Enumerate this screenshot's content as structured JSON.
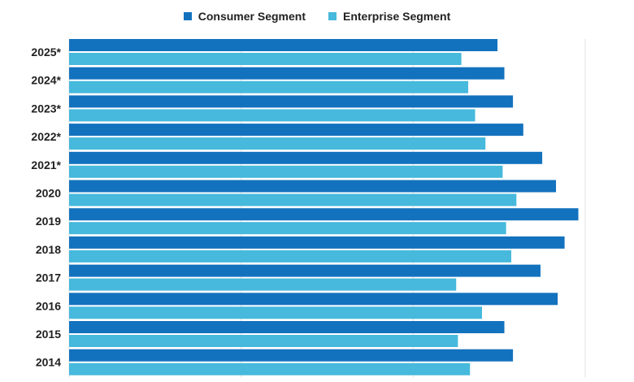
{
  "chart_data": {
    "type": "bar",
    "orientation": "horizontal",
    "categories": [
      "2025*",
      "2024*",
      "2023*",
      "2022*",
      "2021*",
      "2020",
      "2019",
      "2018",
      "2017",
      "2016",
      "2015",
      "2014"
    ],
    "series": [
      {
        "name": "Consumer Segment",
        "color": "#1372be",
        "values": [
          249,
          253,
          258,
          264,
          275,
          283,
          296,
          288,
          274,
          284,
          253,
          258
        ]
      },
      {
        "name": "Enterprise Segment",
        "color": "#46b9dc",
        "values": [
          228,
          232,
          236,
          242,
          252,
          260,
          254,
          257,
          225,
          240,
          226,
          233
        ]
      }
    ],
    "xlim": [
      0,
      300
    ],
    "grid": true,
    "legend_position": "top-center"
  }
}
